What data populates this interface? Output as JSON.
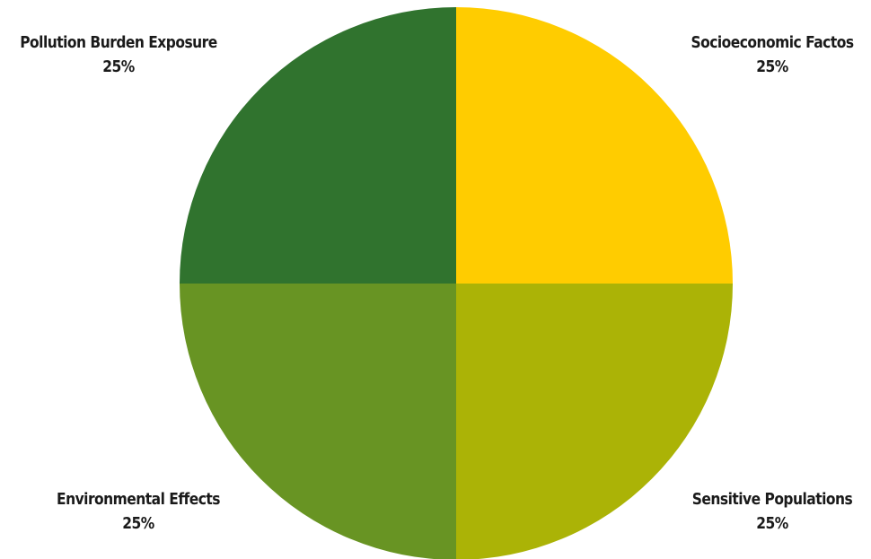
{
  "chart_data": {
    "type": "pie",
    "slices": [
      {
        "label": "Socioeconomic Factos",
        "value": 25,
        "value_label": "25%",
        "color": "#FFCC00"
      },
      {
        "label": "Sensitive Populations",
        "value": 25,
        "value_label": "25%",
        "color": "#ABB306"
      },
      {
        "label": "Environmental Effects",
        "value": 25,
        "value_label": "25%",
        "color": "#689423"
      },
      {
        "label": "Pollution Burden Exposure",
        "value": 25,
        "value_label": "25%",
        "color": "#30732E"
      }
    ],
    "start_angle": "12 o'clock",
    "direction": "clockwise",
    "legend": "none",
    "labels_placement": "outside corners"
  }
}
